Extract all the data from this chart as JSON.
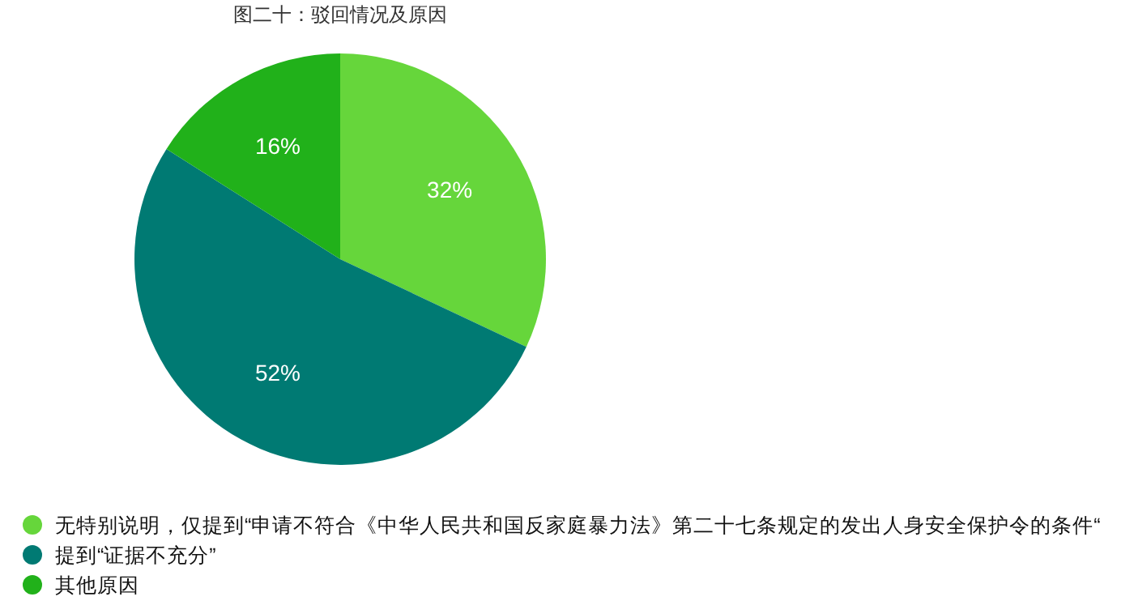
{
  "chart_data": {
    "type": "pie",
    "title": "图二十：驳回情况及原因",
    "categories": [
      "无特别说明，仅提到“申请不符合《中华人民共和国反家庭暴力法》第二十七条规定的发出人身安全保护令的条件“",
      "提到“证据不充分”",
      "其他原因"
    ],
    "values": [
      32,
      52,
      16
    ],
    "colors": [
      "#66d63b",
      "#007a73",
      "#21b11a"
    ],
    "value_labels": [
      "32%",
      "52%",
      "16%"
    ],
    "legend": "bottom"
  }
}
